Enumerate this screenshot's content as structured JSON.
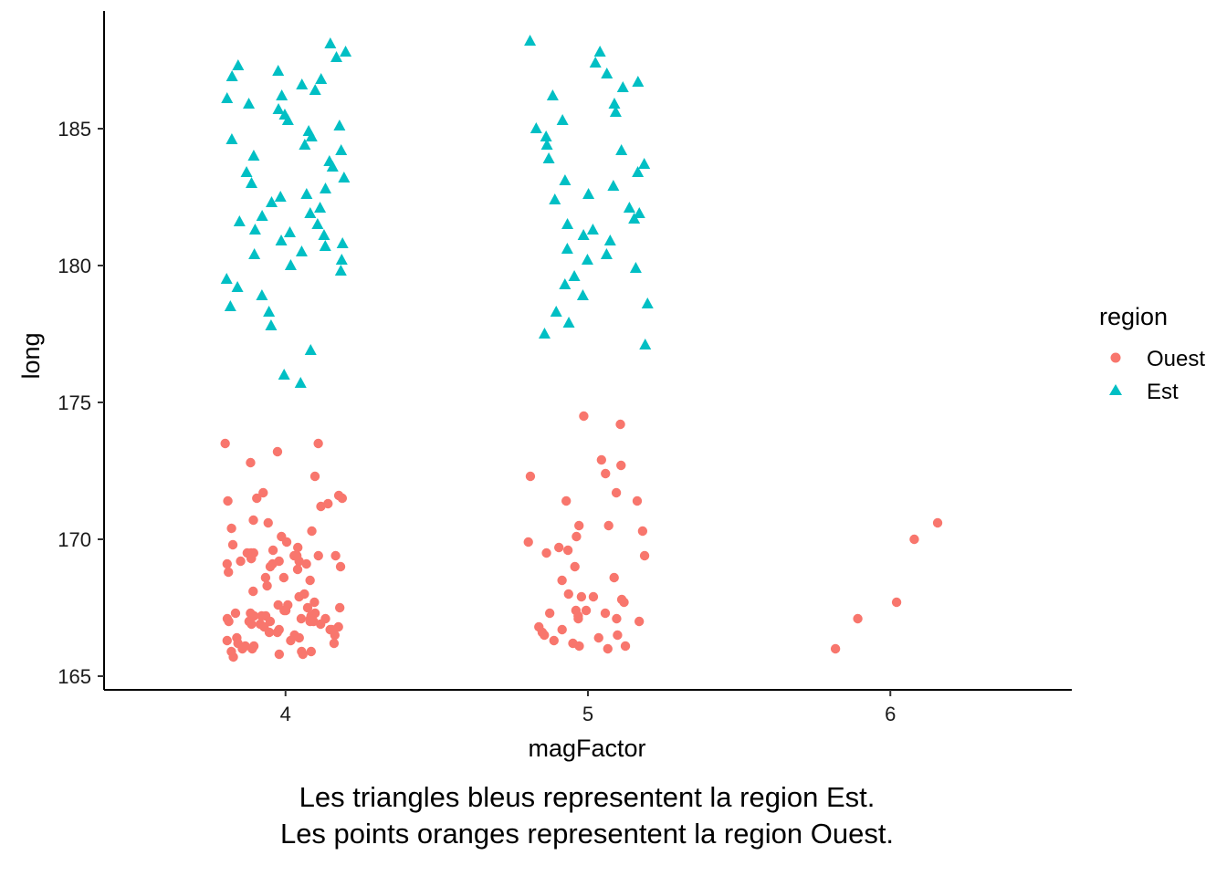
{
  "chart_data": {
    "type": "scatter",
    "xlabel": "magFactor",
    "ylabel": "long",
    "x_categories": [
      "4",
      "5",
      "6"
    ],
    "xlim": [
      3.4,
      6.6
    ],
    "ylim": [
      164.5,
      189.3
    ],
    "yticks": [
      165,
      170,
      175,
      180,
      185
    ],
    "ytick_labels": [
      "165",
      "170",
      "175",
      "180",
      "185"
    ],
    "jitter_width": 0.2,
    "grid": false,
    "legend": {
      "title": "region",
      "placement": "right",
      "entries": [
        {
          "label": "Ouest",
          "shape": "circle"
        },
        {
          "label": "Est",
          "shape": "triangle"
        }
      ]
    },
    "caption": [
      "Les triangles bleus representent la region Est.",
      "Les points oranges representent la region Ouest."
    ],
    "series": [
      {
        "name": "Ouest",
        "shape": "circle",
        "color": "#F8766D",
        "points": [
          [
            4,
            173.5
          ],
          [
            4,
            173.5
          ],
          [
            4,
            173.2
          ],
          [
            4,
            172.8
          ],
          [
            4,
            172.3
          ],
          [
            4,
            171.7
          ],
          [
            4,
            171.6
          ],
          [
            4,
            171.5
          ],
          [
            4,
            171.5
          ],
          [
            4,
            171.4
          ],
          [
            4,
            171.3
          ],
          [
            4,
            171.2
          ],
          [
            4,
            170.7
          ],
          [
            4,
            170.6
          ],
          [
            4,
            170.4
          ],
          [
            4,
            170.3
          ],
          [
            4,
            170.1
          ],
          [
            4,
            169.9
          ],
          [
            4,
            169.7
          ],
          [
            4,
            169.6
          ],
          [
            4,
            169.5
          ],
          [
            4,
            169.5
          ],
          [
            4,
            169.5
          ],
          [
            4,
            169.4
          ],
          [
            4,
            169.4
          ],
          [
            4,
            169.4
          ],
          [
            4,
            169.3
          ],
          [
            4,
            169.3
          ],
          [
            4,
            169.2
          ],
          [
            4,
            169.2
          ],
          [
            4,
            169.2
          ],
          [
            4,
            169.1
          ],
          [
            4,
            169.1
          ],
          [
            4,
            169.1
          ],
          [
            4,
            169.0
          ],
          [
            4,
            169.0
          ],
          [
            4,
            168.9
          ],
          [
            4,
            168.8
          ],
          [
            4,
            168.6
          ],
          [
            4,
            168.6
          ],
          [
            4,
            168.5
          ],
          [
            4,
            168.3
          ],
          [
            4,
            168.1
          ],
          [
            4,
            168.0
          ],
          [
            4,
            167.9
          ],
          [
            4,
            167.7
          ],
          [
            4,
            167.6
          ],
          [
            4,
            167.5
          ],
          [
            4,
            167.5
          ],
          [
            4,
            167.4
          ],
          [
            4,
            167.4
          ],
          [
            4,
            167.3
          ],
          [
            4,
            167.3
          ],
          [
            4,
            167.3
          ],
          [
            4,
            167.2
          ],
          [
            4,
            167.2
          ],
          [
            4,
            167.2
          ],
          [
            4,
            167.2
          ],
          [
            4,
            167.1
          ],
          [
            4,
            167.1
          ],
          [
            4,
            167.1
          ],
          [
            4,
            167.1
          ],
          [
            4,
            167.0
          ],
          [
            4,
            167.0
          ],
          [
            4,
            167.0
          ],
          [
            4,
            167.0
          ],
          [
            4,
            166.9
          ],
          [
            4,
            166.9
          ],
          [
            4,
            166.9
          ],
          [
            4,
            166.8
          ],
          [
            4,
            166.8
          ],
          [
            4,
            166.7
          ],
          [
            4,
            166.7
          ],
          [
            4,
            166.7
          ],
          [
            4,
            166.6
          ],
          [
            4,
            166.6
          ],
          [
            4,
            166.5
          ],
          [
            4,
            166.5
          ],
          [
            4,
            166.4
          ],
          [
            4,
            166.3
          ],
          [
            4,
            166.3
          ],
          [
            4,
            166.2
          ],
          [
            4,
            166.2
          ],
          [
            4,
            166.1
          ],
          [
            4,
            166.1
          ],
          [
            4,
            166.0
          ],
          [
            4,
            166.0
          ],
          [
            4,
            165.9
          ],
          [
            4,
            165.9
          ],
          [
            4,
            165.8
          ],
          [
            4,
            165.8
          ],
          [
            4,
            165.7
          ],
          [
            4,
            167.6
          ],
          [
            4,
            169.4
          ],
          [
            4,
            166.4
          ],
          [
            4,
            167.0
          ],
          [
            4,
            165.9
          ],
          [
            4,
            169.8
          ],
          [
            5,
            174.5
          ],
          [
            5,
            174.2
          ],
          [
            5,
            172.9
          ],
          [
            5,
            172.7
          ],
          [
            5,
            172.4
          ],
          [
            5,
            172.3
          ],
          [
            5,
            171.7
          ],
          [
            5,
            171.4
          ],
          [
            5,
            171.4
          ],
          [
            5,
            170.5
          ],
          [
            5,
            170.5
          ],
          [
            5,
            170.3
          ],
          [
            5,
            170.1
          ],
          [
            5,
            169.9
          ],
          [
            5,
            169.7
          ],
          [
            5,
            169.6
          ],
          [
            5,
            169.5
          ],
          [
            5,
            169.4
          ],
          [
            5,
            169.0
          ],
          [
            5,
            168.6
          ],
          [
            5,
            168.5
          ],
          [
            5,
            167.9
          ],
          [
            5,
            167.9
          ],
          [
            5,
            167.8
          ],
          [
            5,
            167.7
          ],
          [
            5,
            167.4
          ],
          [
            5,
            167.3
          ],
          [
            5,
            167.3
          ],
          [
            5,
            167.2
          ],
          [
            5,
            167.1
          ],
          [
            5,
            167.1
          ],
          [
            5,
            167.0
          ],
          [
            5,
            166.8
          ],
          [
            5,
            166.7
          ],
          [
            5,
            166.6
          ],
          [
            5,
            166.5
          ],
          [
            5,
            166.5
          ],
          [
            5,
            166.4
          ],
          [
            5,
            166.3
          ],
          [
            5,
            166.2
          ],
          [
            5,
            166.1
          ],
          [
            5,
            166.1
          ],
          [
            5,
            166.0
          ],
          [
            5,
            167.4
          ],
          [
            5,
            168.0
          ],
          [
            6,
            170.6
          ],
          [
            6,
            170.0
          ],
          [
            6,
            167.7
          ],
          [
            6,
            167.1
          ],
          [
            6,
            166.0
          ]
        ]
      },
      {
        "name": "Est",
        "shape": "triangle",
        "color": "#00BFC4",
        "points": [
          [
            4,
            188.1
          ],
          [
            4,
            187.8
          ],
          [
            4,
            187.6
          ],
          [
            4,
            187.3
          ],
          [
            4,
            187.1
          ],
          [
            4,
            186.9
          ],
          [
            4,
            186.8
          ],
          [
            4,
            186.6
          ],
          [
            4,
            186.4
          ],
          [
            4,
            186.2
          ],
          [
            4,
            186.1
          ],
          [
            4,
            185.9
          ],
          [
            4,
            185.7
          ],
          [
            4,
            185.5
          ],
          [
            4,
            185.3
          ],
          [
            4,
            185.1
          ],
          [
            4,
            184.9
          ],
          [
            4,
            184.7
          ],
          [
            4,
            184.6
          ],
          [
            4,
            184.4
          ],
          [
            4,
            184.2
          ],
          [
            4,
            184.0
          ],
          [
            4,
            183.8
          ],
          [
            4,
            183.6
          ],
          [
            4,
            183.4
          ],
          [
            4,
            183.2
          ],
          [
            4,
            183.0
          ],
          [
            4,
            182.8
          ],
          [
            4,
            182.6
          ],
          [
            4,
            182.5
          ],
          [
            4,
            182.3
          ],
          [
            4,
            182.1
          ],
          [
            4,
            181.9
          ],
          [
            4,
            181.8
          ],
          [
            4,
            181.6
          ],
          [
            4,
            181.5
          ],
          [
            4,
            181.3
          ],
          [
            4,
            181.2
          ],
          [
            4,
            181.1
          ],
          [
            4,
            180.9
          ],
          [
            4,
            180.8
          ],
          [
            4,
            180.7
          ],
          [
            4,
            180.5
          ],
          [
            4,
            180.4
          ],
          [
            4,
            180.2
          ],
          [
            4,
            180.0
          ],
          [
            4,
            179.8
          ],
          [
            4,
            179.5
          ],
          [
            4,
            179.2
          ],
          [
            4,
            178.9
          ],
          [
            4,
            178.5
          ],
          [
            4,
            178.3
          ],
          [
            4,
            177.8
          ],
          [
            4,
            176.9
          ],
          [
            4,
            176.0
          ],
          [
            4,
            175.7
          ],
          [
            5,
            188.2
          ],
          [
            5,
            187.8
          ],
          [
            5,
            187.4
          ],
          [
            5,
            187.0
          ],
          [
            5,
            186.7
          ],
          [
            5,
            186.5
          ],
          [
            5,
            186.2
          ],
          [
            5,
            185.9
          ],
          [
            5,
            185.6
          ],
          [
            5,
            185.3
          ],
          [
            5,
            185.0
          ],
          [
            5,
            184.7
          ],
          [
            5,
            184.4
          ],
          [
            5,
            184.2
          ],
          [
            5,
            183.9
          ],
          [
            5,
            183.7
          ],
          [
            5,
            183.4
          ],
          [
            5,
            183.1
          ],
          [
            5,
            182.9
          ],
          [
            5,
            182.6
          ],
          [
            5,
            182.4
          ],
          [
            5,
            182.1
          ],
          [
            5,
            181.9
          ],
          [
            5,
            181.7
          ],
          [
            5,
            181.5
          ],
          [
            5,
            181.3
          ],
          [
            5,
            181.1
          ],
          [
            5,
            180.9
          ],
          [
            5,
            180.6
          ],
          [
            5,
            180.4
          ],
          [
            5,
            180.2
          ],
          [
            5,
            179.9
          ],
          [
            5,
            179.6
          ],
          [
            5,
            179.3
          ],
          [
            5,
            178.9
          ],
          [
            5,
            178.6
          ],
          [
            5,
            178.3
          ],
          [
            5,
            177.9
          ],
          [
            5,
            177.5
          ],
          [
            5,
            177.1
          ]
        ]
      }
    ]
  }
}
